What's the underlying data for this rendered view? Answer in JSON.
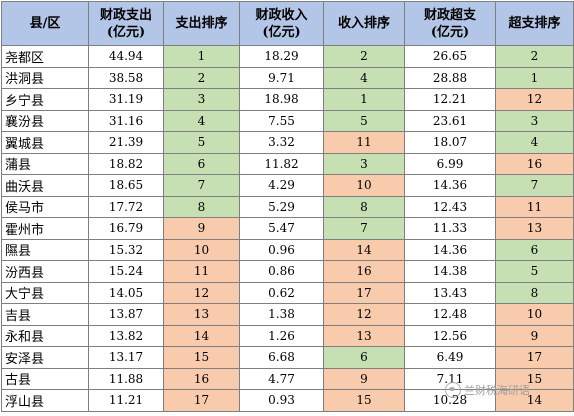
{
  "headers": {
    "county": "县/区",
    "expenditure_l1": "财政支出",
    "expenditure_l2": "(亿元)",
    "expenditure_rank": "支出排序",
    "revenue_l1": "财政收入",
    "revenue_l2": "(亿元)",
    "revenue_rank": "收入排序",
    "excess_l1": "财政超支",
    "excess_l2": "(亿元)",
    "excess_rank": "超支排序"
  },
  "colors": {
    "header_bg": "#b4c6e7",
    "green": "#c6e0b4",
    "orange": "#f8cbad",
    "border": "#7f7f7f"
  },
  "rows": [
    {
      "county": "尧都区",
      "expenditure": "44.94",
      "expenditure_rank": "1",
      "revenue": "18.29",
      "revenue_rank": "2",
      "excess": "26.65",
      "excess_rank": "2"
    },
    {
      "county": "洪洞县",
      "expenditure": "38.58",
      "expenditure_rank": "2",
      "revenue": "9.71",
      "revenue_rank": "4",
      "excess": "28.88",
      "excess_rank": "1"
    },
    {
      "county": "乡宁县",
      "expenditure": "31.19",
      "expenditure_rank": "3",
      "revenue": "18.98",
      "revenue_rank": "1",
      "excess": "12.21",
      "excess_rank": "12"
    },
    {
      "county": "襄汾县",
      "expenditure": "31.16",
      "expenditure_rank": "4",
      "revenue": "7.55",
      "revenue_rank": "5",
      "excess": "23.61",
      "excess_rank": "3"
    },
    {
      "county": "翼城县",
      "expenditure": "21.39",
      "expenditure_rank": "5",
      "revenue": "3.32",
      "revenue_rank": "11",
      "excess": "18.07",
      "excess_rank": "4"
    },
    {
      "county": "蒲县",
      "expenditure": "18.82",
      "expenditure_rank": "6",
      "revenue": "11.82",
      "revenue_rank": "3",
      "excess": "6.99",
      "excess_rank": "16"
    },
    {
      "county": "曲沃县",
      "expenditure": "18.65",
      "expenditure_rank": "7",
      "revenue": "4.29",
      "revenue_rank": "10",
      "excess": "14.36",
      "excess_rank": "7"
    },
    {
      "county": "侯马市",
      "expenditure": "17.72",
      "expenditure_rank": "8",
      "revenue": "5.29",
      "revenue_rank": "8",
      "excess": "12.43",
      "excess_rank": "11"
    },
    {
      "county": "霍州市",
      "expenditure": "16.79",
      "expenditure_rank": "9",
      "revenue": "5.47",
      "revenue_rank": "7",
      "excess": "11.33",
      "excess_rank": "13"
    },
    {
      "county": "隰县",
      "expenditure": "15.32",
      "expenditure_rank": "10",
      "revenue": "0.96",
      "revenue_rank": "14",
      "excess": "14.36",
      "excess_rank": "6"
    },
    {
      "county": "汾西县",
      "expenditure": "15.24",
      "expenditure_rank": "11",
      "revenue": "0.86",
      "revenue_rank": "16",
      "excess": "14.38",
      "excess_rank": "5"
    },
    {
      "county": "大宁县",
      "expenditure": "14.05",
      "expenditure_rank": "12",
      "revenue": "0.62",
      "revenue_rank": "17",
      "excess": "13.43",
      "excess_rank": "8"
    },
    {
      "county": "吉县",
      "expenditure": "13.87",
      "expenditure_rank": "13",
      "revenue": "1.38",
      "revenue_rank": "12",
      "excess": "12.48",
      "excess_rank": "10"
    },
    {
      "county": "永和县",
      "expenditure": "13.82",
      "expenditure_rank": "14",
      "revenue": "1.26",
      "revenue_rank": "13",
      "excess": "12.56",
      "excess_rank": "9"
    },
    {
      "county": "安泽县",
      "expenditure": "13.17",
      "expenditure_rank": "15",
      "revenue": "6.68",
      "revenue_rank": "6",
      "excess": "6.49",
      "excess_rank": "17"
    },
    {
      "county": "古县",
      "expenditure": "11.88",
      "expenditure_rank": "16",
      "revenue": "4.77",
      "revenue_rank": "9",
      "excess": "7.11",
      "excess_rank": "15"
    },
    {
      "county": "浮山县",
      "expenditure": "11.21",
      "expenditure_rank": "17",
      "revenue": "0.93",
      "revenue_rank": "15",
      "excess": "10.28",
      "excess_rank": "14"
    }
  ],
  "watermark": {
    "text": "兰财税海研语",
    "icon": "wechat-icon"
  }
}
